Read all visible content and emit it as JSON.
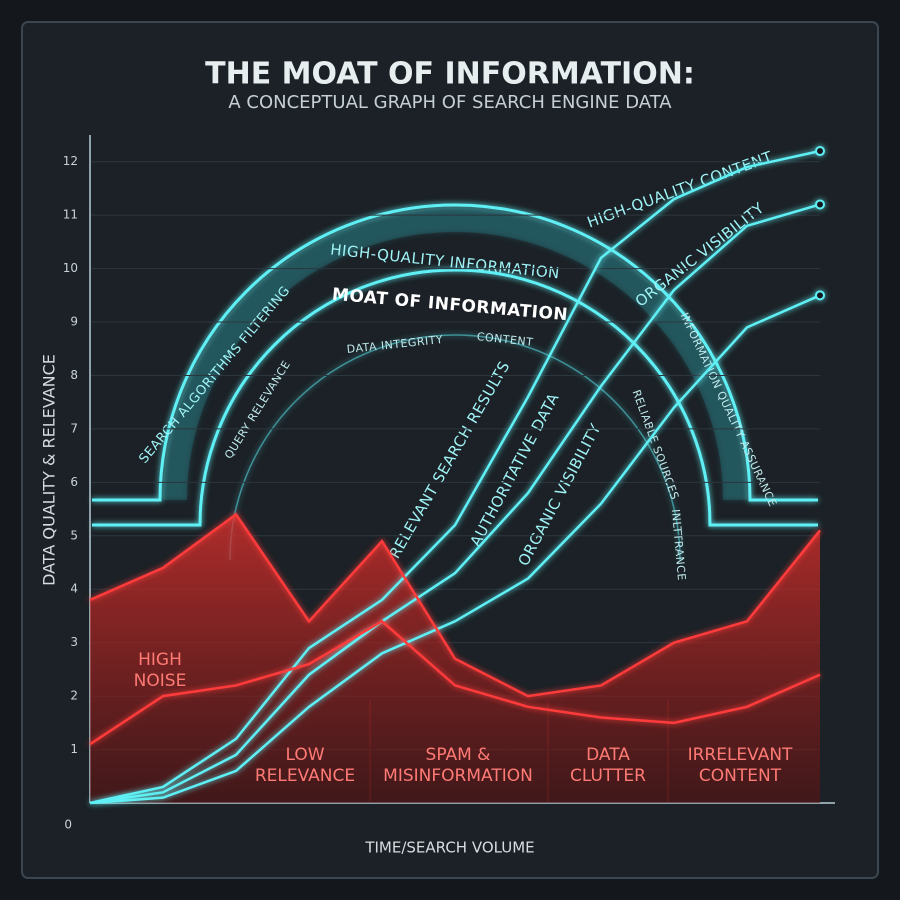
{
  "title": "THE MOAT OF INFORMATION:",
  "subtitle": "A CONCEPTUAL GRAPH OF SEARCH ENGINE DATA",
  "chart_data": {
    "type": "line",
    "y_label": "DATA QUALITY & RELEVANCE",
    "x_label": "TIME/SEARCH VOLUME",
    "categories": [
      null,
      null,
      null,
      null,
      null,
      null,
      null,
      null,
      null,
      null,
      null
    ],
    "ylim": [
      0,
      12.5
    ],
    "yticks": [
      0,
      1,
      2,
      3,
      4,
      5,
      6,
      7,
      8,
      9,
      10,
      11,
      12
    ],
    "series": [
      {
        "color": "#5ef0f5",
        "values": [
          0,
          0.3,
          1.2,
          2.9,
          3.8,
          5.2,
          7.6,
          10.2,
          11.3,
          11.9,
          12.2
        ]
      },
      {
        "color": "#5ef0f5",
        "values": [
          0,
          0.2,
          0.9,
          2.4,
          3.4,
          4.3,
          5.8,
          7.8,
          9.6,
          10.8,
          11.2
        ]
      },
      {
        "color": "#5ef0f5",
        "values": [
          0,
          0.1,
          0.6,
          1.8,
          2.8,
          3.4,
          4.2,
          5.6,
          7.4,
          8.9,
          9.5
        ]
      },
      {
        "color": "#ff3b3b",
        "values": [
          3.8,
          4.4,
          5.4,
          3.4,
          4.9,
          2.7,
          2.0,
          2.2,
          3.0,
          3.4,
          5.1
        ]
      },
      {
        "color": "#ff3b3b",
        "values": [
          1.1,
          2.0,
          2.2,
          2.6,
          3.4,
          2.2,
          1.8,
          1.6,
          1.5,
          1.8,
          2.4
        ]
      }
    ],
    "annotations": [
      "HIGH-QUALITY INFORMATION",
      "MOAT OF INFORMATION",
      "SEARCH ALGORITHMS FILTERING",
      "DATA INTEGRITY",
      "CONTENT",
      "QUERY RELEVANCE",
      "INFORMATION QUALITY ASSURANCE",
      "RELIABLE SOURCES",
      "INLTTRANCE",
      "HIGH-QUALITY CONTENT",
      "ORGANIC VISIBILITY",
      "RELEVANT SEARCH RESULTS",
      "AUTHORITATIVE DATA",
      "ORGANIC VISIBILITY"
    ],
    "zones": [
      [
        "HIGH",
        "NOISE"
      ],
      [
        "LOW",
        "RELEVANCE"
      ],
      [
        "SPAM &",
        "MISINFORMATION"
      ],
      [
        "DATA",
        "CLUTTER"
      ],
      [
        "IRRELEVANT",
        "CONTENT"
      ]
    ]
  }
}
